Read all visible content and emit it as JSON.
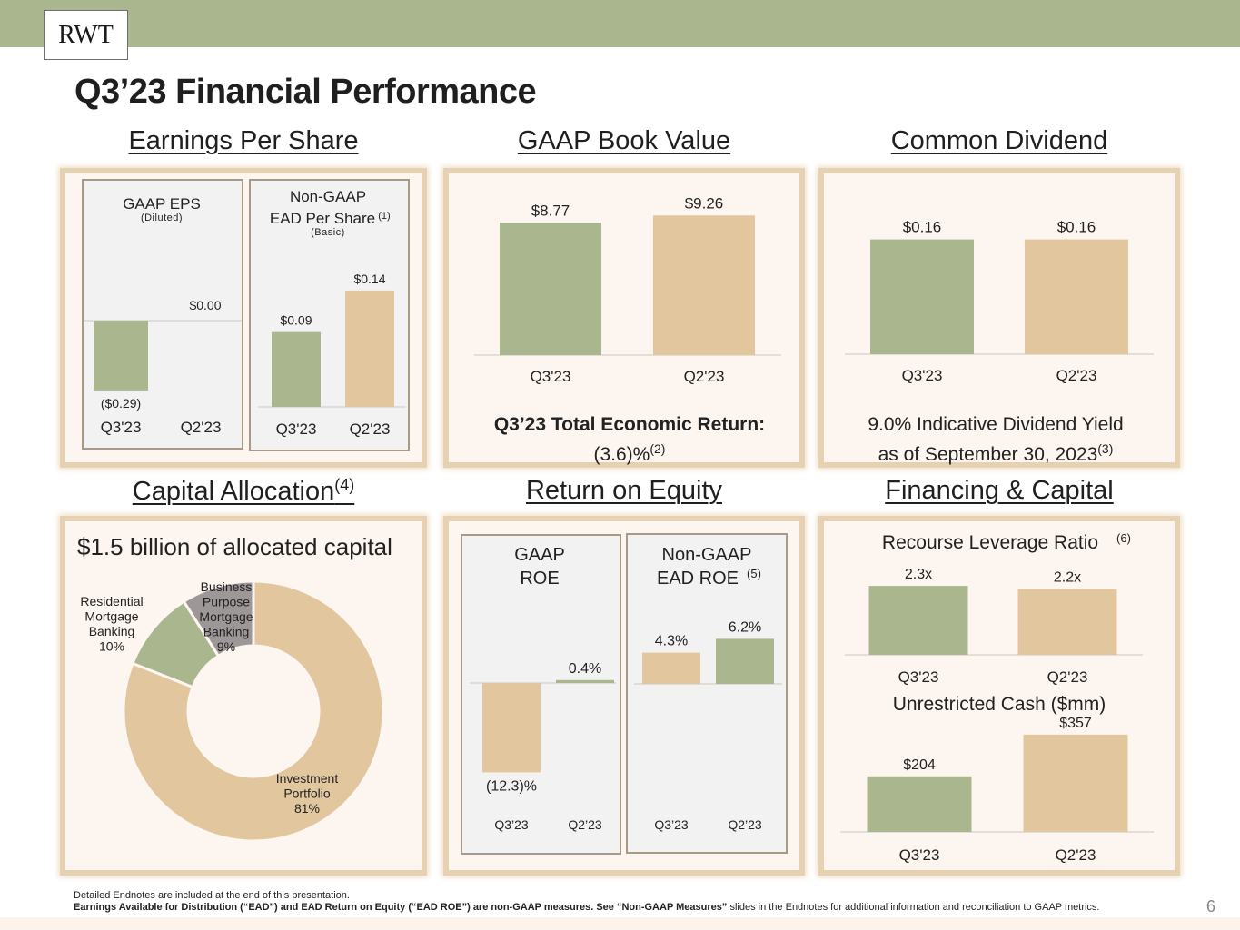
{
  "header": {
    "logo": "RWT",
    "title": "Q3’23 Financial Performance",
    "page_number": "6"
  },
  "colors": {
    "green": "#aab78e",
    "tan": "#e2c69d",
    "gray": "#9d9798",
    "panel_bg": "#fdf5ef",
    "panel_border": "#e6d2b3"
  },
  "sections": {
    "eps": {
      "title": "Earnings Per Share"
    },
    "bv": {
      "title": "GAAP Book Value",
      "caption_bold": "Q3’23 Total Economic Return:",
      "caption_value": "(3.6)%",
      "caption_note": "(2)"
    },
    "div": {
      "title": "Common Dividend",
      "caption_line1": "9.0% Indicative Dividend Yield",
      "caption_line2": "as of September 30, 2023",
      "caption_note": "(3)"
    },
    "cap": {
      "title": "Capital Allocation",
      "title_note": "(4)",
      "headline": "$1.5 billion of allocated capital"
    },
    "roe": {
      "title": "Return on Equity"
    },
    "fin": {
      "title": "Financing & Capital"
    }
  },
  "chart_data": [
    {
      "id": "gaap_eps",
      "type": "bar",
      "title": "GAAP EPS",
      "subtitle": "(Diluted)",
      "categories": [
        "Q3'23",
        "Q2'23"
      ],
      "values": [
        -0.29,
        0.0
      ],
      "labels": [
        "($0.29)",
        "$0.00"
      ],
      "colors": [
        "#aab78e",
        "#e2c69d"
      ]
    },
    {
      "id": "ead_per_share",
      "type": "bar",
      "title_line1": "Non-GAAP",
      "title_line2": "EAD Per Share",
      "title_note": "(1)",
      "subtitle": "(Basic)",
      "categories": [
        "Q3'23",
        "Q2'23"
      ],
      "values": [
        0.09,
        0.14
      ],
      "labels": [
        "$0.09",
        "$0.14"
      ],
      "colors": [
        "#aab78e",
        "#e2c69d"
      ]
    },
    {
      "id": "book_value",
      "type": "bar",
      "title": "GAAP Book Value",
      "categories": [
        "Q3'23",
        "Q2'23"
      ],
      "values": [
        8.77,
        9.26
      ],
      "labels": [
        "$8.77",
        "$9.26"
      ],
      "colors": [
        "#aab78e",
        "#e2c69d"
      ]
    },
    {
      "id": "dividend",
      "type": "bar",
      "title": "Common Dividend",
      "categories": [
        "Q3'23",
        "Q2'23"
      ],
      "values": [
        0.16,
        0.16
      ],
      "labels": [
        "$0.16",
        "$0.16"
      ],
      "colors": [
        "#aab78e",
        "#e2c69d"
      ]
    },
    {
      "id": "capital_allocation",
      "type": "pie",
      "title": "$1.5 billion of allocated capital",
      "slices": [
        {
          "name": "Investment Portfolio",
          "lines": [
            "Investment",
            "Portfolio",
            "81%"
          ],
          "value": 81,
          "color": "#e2c69d"
        },
        {
          "name": "Residential Mortgage Banking",
          "lines": [
            "Residential",
            "Mortgage",
            "Banking",
            "10%"
          ],
          "value": 10,
          "color": "#aab78e"
        },
        {
          "name": "Business Purpose Mortgage Banking",
          "lines": [
            "Business",
            "Purpose",
            "Mortgage",
            "Banking",
            "9%"
          ],
          "value": 9,
          "color": "#9d9798"
        }
      ]
    },
    {
      "id": "gaap_roe",
      "type": "bar",
      "title_line1": "GAAP",
      "title_line2": "ROE",
      "categories": [
        "Q3’23",
        "Q2’23"
      ],
      "values": [
        -12.3,
        0.4
      ],
      "labels": [
        "(12.3)%",
        "0.4%"
      ],
      "colors": [
        "#e2c69d",
        "#aab78e"
      ]
    },
    {
      "id": "ead_roe",
      "type": "bar",
      "title_line1": "Non-GAAP",
      "title_line2": "EAD ROE",
      "title_note": "(5)",
      "categories": [
        "Q3’23",
        "Q2’23"
      ],
      "values": [
        4.3,
        6.2
      ],
      "labels": [
        "4.3%",
        "6.2%"
      ],
      "colors": [
        "#e2c69d",
        "#aab78e"
      ]
    },
    {
      "id": "recourse_leverage",
      "type": "bar",
      "title": "Recourse Leverage Ratio",
      "title_note": "(6)",
      "categories": [
        "Q3'23",
        "Q2'23"
      ],
      "values": [
        2.3,
        2.2
      ],
      "labels": [
        "2.3x",
        "2.2x"
      ],
      "colors": [
        "#aab78e",
        "#e2c69d"
      ]
    },
    {
      "id": "unrestricted_cash",
      "type": "bar",
      "title": "Unrestricted Cash ($mm)",
      "categories": [
        "Q3'23",
        "Q2'23"
      ],
      "values": [
        204,
        357
      ],
      "labels": [
        "$204",
        "$357"
      ],
      "colors": [
        "#aab78e",
        "#e2c69d"
      ]
    }
  ],
  "footer": {
    "line1": "Detailed Endnotes are included at the end of this presentation.",
    "line2_bold": "Earnings Available  for Distribution (“EAD”) and EAD Return on Equity (“EAD ROE”) are non-GAAP measures.  See “Non-GAAP Measures”",
    "line2_rest": "  slides  in the Endnotes for additional information and reconciliation  to GAAP metrics."
  }
}
